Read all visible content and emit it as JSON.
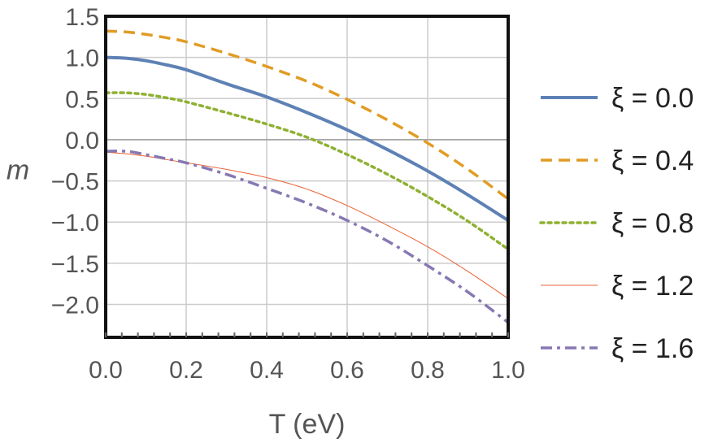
{
  "chart_data": {
    "type": "line",
    "title": "",
    "xlabel": "T (eV)",
    "ylabel": "m",
    "xlim": [
      0,
      1.0
    ],
    "ylim": [
      -2.4,
      1.5
    ],
    "xticks": [
      "0.0",
      "0.2",
      "0.4",
      "0.6",
      "0.8",
      "1.0"
    ],
    "xtick_values": [
      0,
      0.2,
      0.4,
      0.6,
      0.8,
      1.0
    ],
    "yticks": [
      "1.5",
      "1.0",
      "0.5",
      "0.0",
      "−0.5",
      "−1.0",
      "−1.5",
      "−2.0"
    ],
    "ytick_values": [
      1.5,
      1.0,
      0.5,
      0.0,
      -0.5,
      -1.0,
      -1.5,
      -2.0
    ],
    "grid": true,
    "legend_position": "right",
    "x": [
      0,
      0.05,
      0.1,
      0.15,
      0.2,
      0.3,
      0.4,
      0.5,
      0.6,
      0.7,
      0.8,
      0.9,
      1.0
    ],
    "series": [
      {
        "name": "ξ = 0.0",
        "style": "solid",
        "color": "#5e81b5",
        "width": 4,
        "values": [
          1.0,
          0.99,
          0.96,
          0.91,
          0.85,
          0.68,
          0.52,
          0.33,
          0.12,
          -0.12,
          -0.38,
          -0.67,
          -0.98
        ]
      },
      {
        "name": "ξ = 0.4",
        "style": "dashed",
        "color": "#e19c24",
        "width": 3.5,
        "values": [
          1.32,
          1.31,
          1.28,
          1.24,
          1.19,
          1.05,
          0.89,
          0.71,
          0.49,
          0.24,
          -0.04,
          -0.36,
          -0.72
        ]
      },
      {
        "name": "ξ = 0.8",
        "style": "dotted",
        "color": "#8fb032",
        "width": 3.5,
        "values": [
          0.57,
          0.57,
          0.55,
          0.51,
          0.46,
          0.33,
          0.19,
          0.03,
          -0.18,
          -0.42,
          -0.69,
          -0.99,
          -1.33
        ]
      },
      {
        "name": "ξ = 1.2",
        "style": "thin",
        "color": "#eb6235",
        "width": 1,
        "values": [
          -0.15,
          -0.17,
          -0.2,
          -0.24,
          -0.28,
          -0.36,
          -0.46,
          -0.6,
          -0.8,
          -1.04,
          -1.3,
          -1.6,
          -1.93
        ]
      },
      {
        "name": "ξ = 1.6",
        "style": "dashdot",
        "color": "#8778b3",
        "width": 3.5,
        "values": [
          -0.14,
          -0.14,
          -0.18,
          -0.23,
          -0.28,
          -0.42,
          -0.59,
          -0.77,
          -0.98,
          -1.23,
          -1.53,
          -1.85,
          -2.22
        ]
      }
    ]
  }
}
